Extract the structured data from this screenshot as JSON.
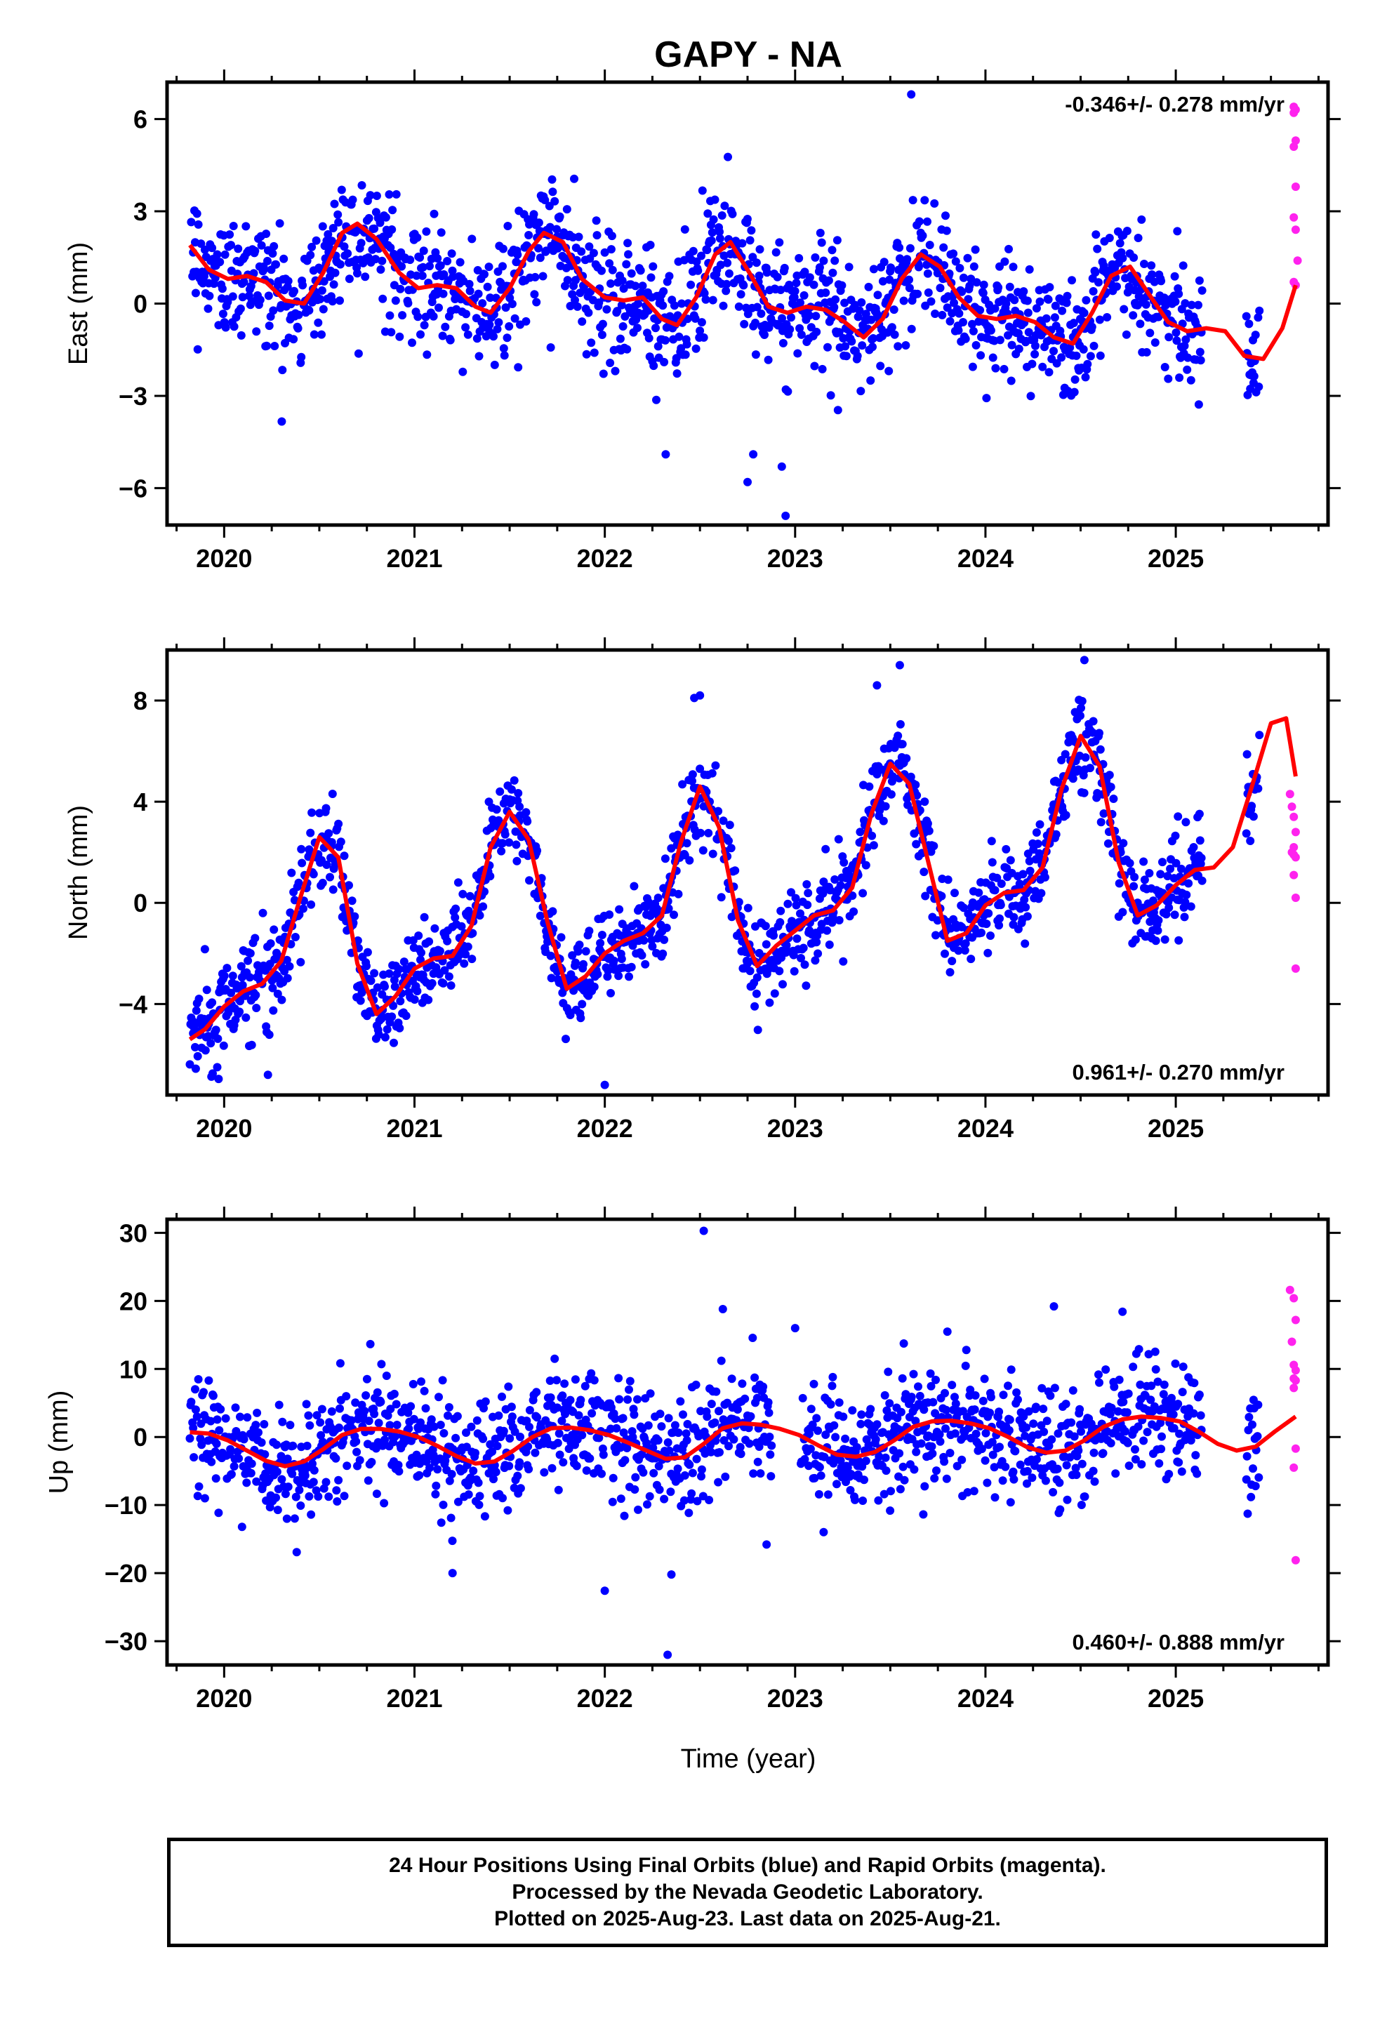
{
  "title": "GAPY - NA",
  "xlabel": "Time (year)",
  "colors": {
    "final": "#0000ff",
    "rapid": "#ff22ee",
    "trend": "#ff0000",
    "frame": "#000000"
  },
  "chart_data": [
    {
      "type": "scatter",
      "id": "east",
      "ylabel": "East (mm)",
      "rate_label": "-0.346+/- 0.278 mm/yr",
      "rate_position": "top-right",
      "xlim": [
        2019.7,
        2025.8
      ],
      "ylim": [
        -7.2,
        7.2
      ],
      "yticks": [
        6,
        3,
        0,
        -3,
        -6
      ],
      "ytick_labels": [
        "6",
        "3",
        "0",
        "−3",
        "−6"
      ],
      "xticks": [
        2020,
        2021,
        2022,
        2023,
        2024,
        2025
      ],
      "xtick_labels": [
        "2020",
        "2021",
        "2022",
        "2023",
        "2024",
        "2025"
      ],
      "series": [
        {
          "kind": "final-orbits-scatter",
          "color": "#0000ff",
          "x_range": [
            2019.82,
            2025.44
          ],
          "gaps": [
            [
              2025.14,
              2025.37
            ]
          ],
          "trend_offset": -0.4,
          "trend_rate": -0.346,
          "seasonal": [
            {
              "amp": 1.5,
              "phase": 0.62
            }
          ],
          "noise_sd": 1.0,
          "outliers": [
            [
              2022.32,
              -4.9
            ],
            [
              2022.75,
              -5.8
            ],
            [
              2022.95,
              -6.9
            ],
            [
              2022.93,
              -5.3
            ],
            [
              2023.61,
              6.8
            ],
            [
              2022.78,
              -4.9
            ]
          ]
        },
        {
          "kind": "rapid-orbits-scatter",
          "color": "#ff22ee",
          "x": [
            2025.62,
            2025.62,
            2025.63,
            2025.63,
            2025.62,
            2025.63,
            2025.62,
            2025.63,
            2025.64,
            2025.62,
            2025.63
          ],
          "y": [
            6.4,
            6.2,
            6.3,
            5.3,
            5.1,
            3.8,
            2.8,
            2.4,
            1.4,
            0.7,
            0.6
          ]
        },
        {
          "kind": "smoothed-model",
          "color": "#ff0000",
          "x": [
            2019.82,
            2019.92,
            2020.02,
            2020.12,
            2020.22,
            2020.32,
            2020.42,
            2020.52,
            2020.62,
            2020.7,
            2020.8,
            2020.92,
            2021.02,
            2021.12,
            2021.22,
            2021.32,
            2021.4,
            2021.5,
            2021.6,
            2021.68,
            2021.78,
            2021.88,
            2022.0,
            2022.1,
            2022.2,
            2022.3,
            2022.38,
            2022.48,
            2022.58,
            2022.66,
            2022.76,
            2022.86,
            2022.96,
            2023.06,
            2023.16,
            2023.26,
            2023.36,
            2023.46,
            2023.56,
            2023.66,
            2023.76,
            2023.86,
            2023.96,
            2024.06,
            2024.16,
            2024.26,
            2024.36,
            2024.46,
            2024.56,
            2024.66,
            2024.76,
            2024.86,
            2024.96,
            2025.06,
            2025.16,
            2025.26,
            2025.36,
            2025.46,
            2025.56,
            2025.63
          ],
          "y": [
            1.9,
            1.1,
            0.8,
            0.9,
            0.7,
            0.1,
            0.0,
            1.0,
            2.3,
            2.6,
            2.1,
            1.0,
            0.5,
            0.6,
            0.5,
            -0.1,
            -0.3,
            0.5,
            1.7,
            2.3,
            2.0,
            0.8,
            0.2,
            0.1,
            0.2,
            -0.5,
            -0.7,
            0.2,
            1.6,
            2.0,
            1.0,
            -0.1,
            -0.3,
            -0.1,
            -0.2,
            -0.6,
            -1.1,
            -0.5,
            0.8,
            1.6,
            1.2,
            0.2,
            -0.4,
            -0.5,
            -0.4,
            -0.6,
            -1.1,
            -1.3,
            -0.3,
            0.9,
            1.2,
            0.3,
            -0.6,
            -0.9,
            -0.8,
            -0.9,
            -1.7,
            -1.8,
            -0.8,
            0.6
          ]
        }
      ]
    },
    {
      "type": "scatter",
      "id": "north",
      "ylabel": "North (mm)",
      "rate_label": "0.961+/- 0.270 mm/yr",
      "rate_position": "bottom-right",
      "xlim": [
        2019.7,
        2025.8
      ],
      "ylim": [
        -7.6,
        10.0
      ],
      "yticks": [
        8,
        4,
        0,
        -4
      ],
      "ytick_labels": [
        "8",
        "4",
        "0",
        "−4"
      ],
      "xticks": [
        2020,
        2021,
        2022,
        2023,
        2024,
        2025
      ],
      "xtick_labels": [
        "2020",
        "2021",
        "2022",
        "2023",
        "2024",
        "2025"
      ],
      "series": [
        {
          "kind": "final-orbits-scatter",
          "color": "#0000ff",
          "x_range": [
            2019.82,
            2025.44
          ],
          "gaps": [
            [
              2025.14,
              2025.37
            ]
          ],
          "trend_offset": -1.6,
          "trend_rate": 0.961,
          "seasonal": [
            {
              "amp": 3.6,
              "phase": 0.5
            }
          ],
          "noise_sd": 0.9,
          "outliers": [
            [
              2022.47,
              8.1
            ],
            [
              2022.5,
              8.2
            ],
            [
              2022.0,
              -7.2
            ],
            [
              2020.23,
              -6.8
            ],
            [
              2023.55,
              9.4
            ],
            [
              2024.52,
              9.6
            ],
            [
              2023.43,
              8.6
            ]
          ]
        },
        {
          "kind": "rapid-orbits-scatter",
          "color": "#ff22ee",
          "x": [
            2025.6,
            2025.61,
            2025.62,
            2025.63,
            2025.62,
            2025.61,
            2025.63,
            2025.62,
            2025.63,
            2025.62,
            2025.63
          ],
          "y": [
            4.3,
            3.8,
            3.4,
            2.8,
            2.2,
            2.0,
            1.8,
            1.1,
            0.2,
            1.9,
            -2.6
          ]
        },
        {
          "kind": "smoothed-model",
          "color": "#ff0000",
          "x": [
            2019.82,
            2019.9,
            2020.0,
            2020.1,
            2020.2,
            2020.3,
            2020.4,
            2020.5,
            2020.6,
            2020.7,
            2020.8,
            2020.9,
            2021.0,
            2021.1,
            2021.2,
            2021.3,
            2021.4,
            2021.5,
            2021.6,
            2021.7,
            2021.8,
            2021.9,
            2022.0,
            2022.1,
            2022.2,
            2022.3,
            2022.4,
            2022.5,
            2022.6,
            2022.7,
            2022.8,
            2022.9,
            2023.0,
            2023.1,
            2023.2,
            2023.3,
            2023.4,
            2023.5,
            2023.6,
            2023.7,
            2023.8,
            2023.9,
            2024.0,
            2024.1,
            2024.2,
            2024.3,
            2024.4,
            2024.5,
            2024.6,
            2024.7,
            2024.8,
            2024.9,
            2025.0,
            2025.1,
            2025.2,
            2025.3,
            2025.4,
            2025.5,
            2025.58,
            2025.63
          ],
          "y": [
            -5.4,
            -5.0,
            -4.1,
            -3.5,
            -3.2,
            -2.3,
            0.2,
            2.6,
            1.8,
            -2.4,
            -4.4,
            -3.7,
            -2.6,
            -2.2,
            -2.1,
            -0.9,
            2.2,
            3.6,
            2.5,
            -0.8,
            -3.4,
            -2.9,
            -2.0,
            -1.5,
            -1.2,
            -0.5,
            2.4,
            4.6,
            3.0,
            -0.7,
            -2.5,
            -1.7,
            -1.1,
            -0.5,
            -0.3,
            0.6,
            3.5,
            5.5,
            4.7,
            1.6,
            -1.5,
            -1.2,
            -0.1,
            0.4,
            0.5,
            1.4,
            4.5,
            6.6,
            5.4,
            1.6,
            -0.5,
            -0.1,
            0.7,
            1.3,
            1.4,
            2.2,
            4.6,
            7.1,
            7.3,
            5.0
          ]
        }
      ]
    },
    {
      "type": "scatter",
      "id": "up",
      "ylabel": "Up (mm)",
      "rate_label": "0.460+/- 0.888 mm/yr",
      "rate_position": "bottom-right",
      "xlim": [
        2019.7,
        2025.8
      ],
      "ylim": [
        -33.5,
        32.0
      ],
      "yticks": [
        30,
        20,
        10,
        0,
        -10,
        -20,
        -30
      ],
      "ytick_labels": [
        "30",
        "20",
        "10",
        "0",
        "−10",
        "−20",
        "−30"
      ],
      "xticks": [
        2020,
        2021,
        2022,
        2023,
        2024,
        2025
      ],
      "xtick_labels": [
        "2020",
        "2021",
        "2022",
        "2023",
        "2024",
        "2025"
      ],
      "series": [
        {
          "kind": "final-orbits-scatter",
          "color": "#0000ff",
          "x_range": [
            2019.82,
            2025.44
          ],
          "gaps": [
            [
              2022.88,
              2023.03
            ],
            [
              2025.14,
              2025.37
            ]
          ],
          "trend_offset": -1.0,
          "trend_rate": 0.46,
          "seasonal": [
            {
              "amp": 2.6,
              "phase": 0.8
            }
          ],
          "noise_sd": 4.2,
          "outliers": [
            [
              2022.52,
              30.3
            ],
            [
              2022.33,
              -32.0
            ],
            [
              2022.0,
              -22.6
            ],
            [
              2021.2,
              -20.0
            ],
            [
              2022.85,
              -15.8
            ],
            [
              2022.35,
              -20.2
            ],
            [
              2022.62,
              18.8
            ],
            [
              2024.36,
              19.2
            ],
            [
              2024.72,
              18.4
            ],
            [
              2023.0,
              16.0
            ]
          ]
        },
        {
          "kind": "rapid-orbits-scatter",
          "color": "#ff22ee",
          "x": [
            2025.6,
            2025.62,
            2025.63,
            2025.61,
            2025.62,
            2025.63,
            2025.62,
            2025.63,
            2025.62,
            2025.63,
            2025.62,
            2025.63
          ],
          "y": [
            21.6,
            20.4,
            17.2,
            14.0,
            10.6,
            9.8,
            8.6,
            8.3,
            7.2,
            -1.7,
            -4.5,
            -18.1
          ]
        },
        {
          "kind": "smoothed-model",
          "color": "#ff0000",
          "x": [
            2019.82,
            2019.92,
            2020.02,
            2020.12,
            2020.22,
            2020.32,
            2020.42,
            2020.52,
            2020.62,
            2020.72,
            2020.82,
            2020.92,
            2021.02,
            2021.12,
            2021.22,
            2021.32,
            2021.42,
            2021.52,
            2021.62,
            2021.72,
            2021.82,
            2021.92,
            2022.02,
            2022.12,
            2022.22,
            2022.32,
            2022.42,
            2022.52,
            2022.62,
            2022.72,
            2022.82,
            2022.92,
            2023.02,
            2023.12,
            2023.22,
            2023.32,
            2023.42,
            2023.52,
            2023.62,
            2023.72,
            2023.82,
            2023.92,
            2024.02,
            2024.12,
            2024.22,
            2024.32,
            2024.42,
            2024.52,
            2024.62,
            2024.72,
            2024.82,
            2024.92,
            2025.02,
            2025.12,
            2025.22,
            2025.32,
            2025.42,
            2025.52,
            2025.63
          ],
          "y": [
            0.7,
            0.5,
            -0.5,
            -2.0,
            -3.5,
            -4.3,
            -3.6,
            -1.8,
            0.3,
            1.2,
            1.2,
            0.8,
            0.0,
            -1.3,
            -2.8,
            -3.9,
            -3.6,
            -2.0,
            0.0,
            1.3,
            1.4,
            1.0,
            0.3,
            -0.8,
            -2.0,
            -3.2,
            -3.0,
            -1.0,
            1.3,
            2.0,
            1.8,
            1.2,
            0.3,
            -1.2,
            -2.6,
            -2.9,
            -2.2,
            -0.5,
            1.5,
            2.3,
            2.4,
            2.0,
            1.3,
            0.0,
            -1.5,
            -2.3,
            -2.0,
            -0.5,
            1.5,
            2.6,
            3.0,
            2.8,
            2.3,
            0.8,
            -1.0,
            -2.0,
            -1.4,
            0.8,
            3.0
          ]
        }
      ]
    }
  ],
  "footer": {
    "line1": "24 Hour Positions Using Final Orbits (blue) and Rapid Orbits (magenta).",
    "line2": "Processed by the Nevada Geodetic Laboratory.",
    "line3": "Plotted on 2025-Aug-23. Last data on 2025-Aug-21."
  }
}
